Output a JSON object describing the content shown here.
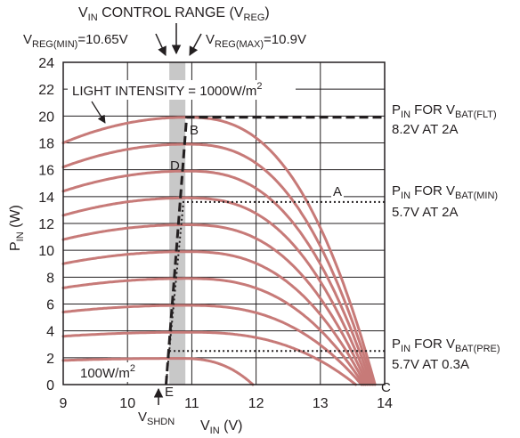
{
  "colors": {
    "curve": "#c77a78",
    "band": "#c8c8c8",
    "grid": "#231f20",
    "text": "#231f20"
  },
  "chart_data": {
    "type": "line",
    "title": "",
    "xlabel": {
      "main": "V",
      "sub": "IN",
      "unit": " (V)"
    },
    "ylabel": {
      "main": "P",
      "sub": "IN",
      "unit": " (W)"
    },
    "xlim": [
      9,
      14
    ],
    "ylim": [
      0,
      24
    ],
    "xticks": [
      "9",
      "10",
      "11",
      "12",
      "13",
      "14"
    ],
    "yticks": [
      "0",
      "2",
      "4",
      "6",
      "8",
      "10",
      "12",
      "14",
      "16",
      "18",
      "20",
      "22",
      "24"
    ],
    "grid": true,
    "vreg_band": [
      10.65,
      10.9
    ],
    "series": [
      {
        "peak": 19.9,
        "voc": 13.85,
        "v_at_9": 18.0
      },
      {
        "peak": 17.9,
        "voc": 13.82,
        "v_at_9": 16.2
      },
      {
        "peak": 15.9,
        "voc": 13.79,
        "v_at_9": 14.4
      },
      {
        "peak": 13.9,
        "voc": 13.76,
        "v_at_9": 12.6
      },
      {
        "peak": 11.9,
        "voc": 13.73,
        "v_at_9": 10.8
      },
      {
        "peak": 9.9,
        "voc": 13.7,
        "v_at_9": 9.0
      },
      {
        "peak": 7.9,
        "voc": 13.67,
        "v_at_9": 7.2
      },
      {
        "peak": 5.9,
        "voc": 13.64,
        "v_at_9": 5.4
      },
      {
        "peak": 3.9,
        "voc": 13.55,
        "v_at_9": 3.6
      },
      {
        "peak": 1.95,
        "voc": 11.95,
        "v_at_9": 1.8
      }
    ],
    "operating_line": {
      "upper": [
        [
          10.6,
          0
        ],
        [
          10.92,
          19.9
        ],
        [
          14,
          19.9
        ]
      ],
      "lower": [
        [
          10.6,
          0
        ],
        [
          10.65,
          2.5
        ],
        [
          10.87,
          13.6
        ],
        [
          14,
          13.6
        ]
      ],
      "precharge": [
        [
          10.65,
          2.5
        ],
        [
          14,
          2.5
        ]
      ]
    },
    "labels": {
      "band_title": {
        "pre": "V",
        "sub": "IN",
        "post": " CONTROL RANGE (V",
        "sub2": "REG",
        "post2": ")"
      },
      "vreg_min": {
        "pre": "V",
        "sub": "REG(MIN)",
        "post": "=10.65V"
      },
      "vreg_max": {
        "pre": "V",
        "sub": "REG(MAX)",
        "post": "=10.9V"
      },
      "light": {
        "pre": "LIGHT INTENSITY = 1000W/m",
        "sup": "2"
      },
      "light_low": {
        "pre": "100W/m",
        "sup": "2"
      },
      "pin_flt": {
        "line1_pre": "P",
        "line1_sub": "IN",
        "line1_mid": " FOR V",
        "line1_sub2": "BAT(FLT)",
        "line2": "8.2V AT 2A"
      },
      "pin_min": {
        "line1_pre": "P",
        "line1_sub": "IN",
        "line1_mid": " FOR V",
        "line1_sub2": "BAT(MIN)",
        "line2": "5.7V AT 2A"
      },
      "pin_pre": {
        "line1_pre": "P",
        "line1_sub": "IN",
        "line1_mid": " FOR V",
        "line1_sub2": "BAT(PRE)",
        "line2": "5.7V AT 0.3A"
      },
      "vshdn": {
        "pre": "V",
        "sub": "SHDN"
      },
      "points": {
        "A": "A",
        "B": "B",
        "C": "C",
        "D": "D",
        "E": "E"
      }
    }
  }
}
